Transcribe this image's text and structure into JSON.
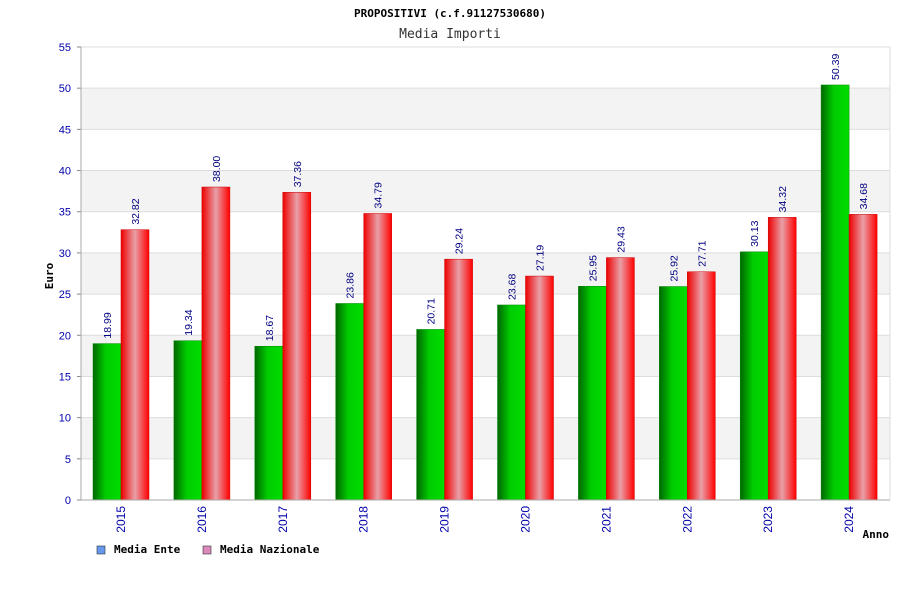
{
  "chart_data": {
    "type": "bar",
    "title": "PROPOSITIVI (c.f.91127530680)",
    "subtitle": "Media Importi",
    "xlabel": "Anno",
    "ylabel": "Euro",
    "ylim": [
      0,
      55
    ],
    "yticks": [
      0,
      5,
      10,
      15,
      20,
      25,
      30,
      35,
      40,
      45,
      50,
      55
    ],
    "grid": true,
    "legend_position": "bottom-left",
    "categories": [
      "2015",
      "2016",
      "2017",
      "2018",
      "2019",
      "2020",
      "2021",
      "2022",
      "2023",
      "2024"
    ],
    "series": [
      {
        "name": "Media Ente",
        "color": "#00aa00",
        "legend_color": "#6699ee",
        "values": [
          18.99,
          19.34,
          18.67,
          23.86,
          20.71,
          23.68,
          25.95,
          25.92,
          30.13,
          50.39
        ],
        "labels": [
          "18.99",
          "19.34",
          "18.67",
          "23.86",
          "20.71",
          "23.68",
          "25.95",
          "25.92",
          "30.13",
          "50.39"
        ]
      },
      {
        "name": "Media Nazionale",
        "color": "#ee0000",
        "legend_color": "#dd88bb",
        "values": [
          32.82,
          38.0,
          37.36,
          34.79,
          29.24,
          27.19,
          29.43,
          27.71,
          34.32,
          34.68
        ],
        "labels": [
          "32.82",
          "38.00",
          "37.36",
          "34.79",
          "29.24",
          "27.19",
          "29.43",
          "27.71",
          "34.32",
          "34.68"
        ]
      }
    ]
  }
}
